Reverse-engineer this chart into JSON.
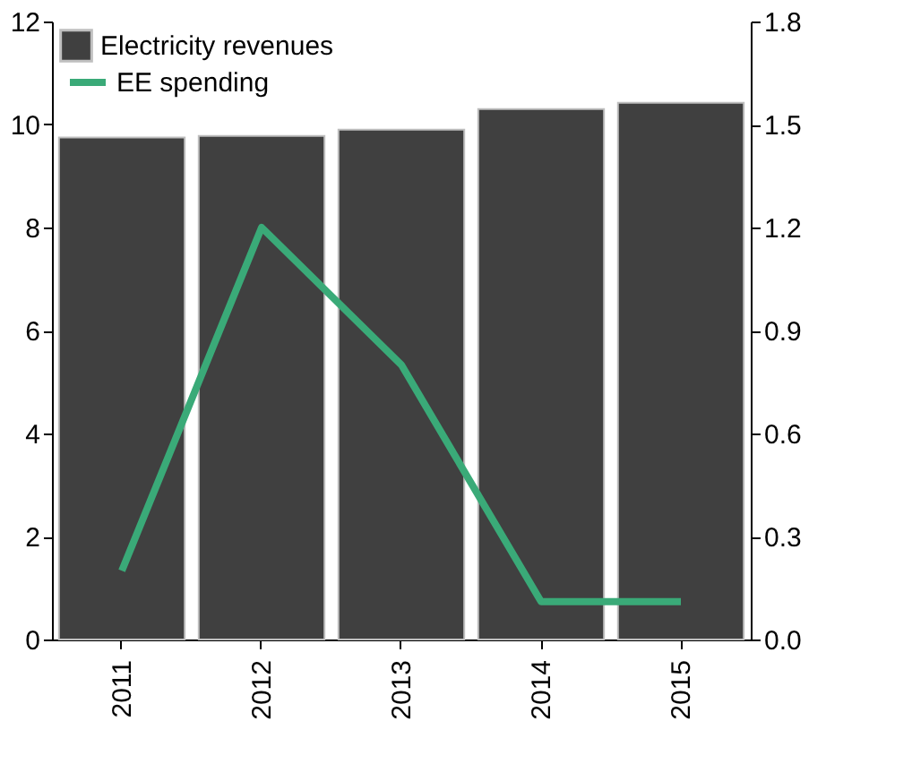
{
  "chart_data": {
    "type": "bar",
    "categories": [
      "2011",
      "2012",
      "2013",
      "2014",
      "2015"
    ],
    "series": [
      {
        "name": "Electricity revenues",
        "color": "#404040",
        "values": [
          9.75,
          9.78,
          9.9,
          10.3,
          10.42
        ]
      },
      {
        "name": "EE spending",
        "type": "line",
        "axis": "y2",
        "color": "#3aaa78",
        "values": [
          0.2,
          1.2,
          0.8,
          0.11,
          0.11
        ]
      }
    ],
    "ylim": [
      0,
      12
    ],
    "yticks": [
      0,
      2,
      4,
      6,
      8,
      10,
      12
    ],
    "y2lim": [
      0,
      1.8
    ],
    "y2ticks": [
      {
        "value": 0,
        "label": "0.0"
      },
      {
        "value": 0.3,
        "label": "0.3"
      },
      {
        "value": 0.6,
        "label": "0.6"
      },
      {
        "value": 0.9,
        "label": "0.9"
      },
      {
        "value": 1.2,
        "label": "1.2"
      },
      {
        "value": 1.5,
        "label": "1.5"
      },
      {
        "value": 1.8,
        "label": "1.8"
      }
    ],
    "grid": false,
    "legend": "top left"
  }
}
